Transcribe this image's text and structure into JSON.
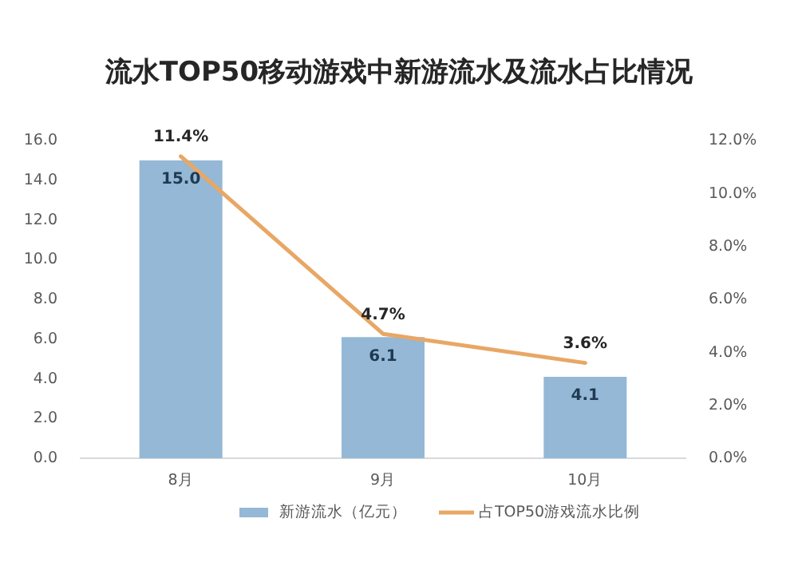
{
  "chart_data": {
    "type": "bar",
    "title": "流水TOP50移动游戏中新游流水及流水占比情况",
    "categories": [
      "8月",
      "9月",
      "10月"
    ],
    "series": [
      {
        "name": "新游流水（亿元）",
        "color": "#94b8d6",
        "values": [
          15.0,
          6.1,
          4.1
        ],
        "value_labels": [
          "15.0",
          "6.1",
          "4.1"
        ]
      },
      {
        "name": "占TOP50游戏流水比例",
        "type": "line",
        "axis": "y2",
        "color": "#e8a765",
        "values": [
          11.4,
          4.7,
          3.6
        ],
        "value_labels": [
          "11.4%",
          "4.7%",
          "3.6%"
        ]
      }
    ],
    "ylim": [
      0,
      16
    ],
    "yticks": [
      {
        "value": 0,
        "label": "0.0"
      },
      {
        "value": 2,
        "label": "2.0"
      },
      {
        "value": 4,
        "label": "4.0"
      },
      {
        "value": 6,
        "label": "6.0"
      },
      {
        "value": 8,
        "label": "8.0"
      },
      {
        "value": 10,
        "label": "10.0"
      },
      {
        "value": 12,
        "label": "12.0"
      },
      {
        "value": 14,
        "label": "14.0"
      },
      {
        "value": 16,
        "label": "16.0"
      }
    ],
    "y2lim": [
      0,
      12
    ],
    "y2ticks": [
      {
        "value": 0,
        "label": "0.0%"
      },
      {
        "value": 2,
        "label": "2.0%"
      },
      {
        "value": 4,
        "label": "4.0%"
      },
      {
        "value": 6,
        "label": "6.0%"
      },
      {
        "value": 8,
        "label": "8.0%"
      },
      {
        "value": 10,
        "label": "10.0%"
      },
      {
        "value": 12,
        "label": "12.0%"
      }
    ],
    "legend": "bottom",
    "marker": "none"
  }
}
